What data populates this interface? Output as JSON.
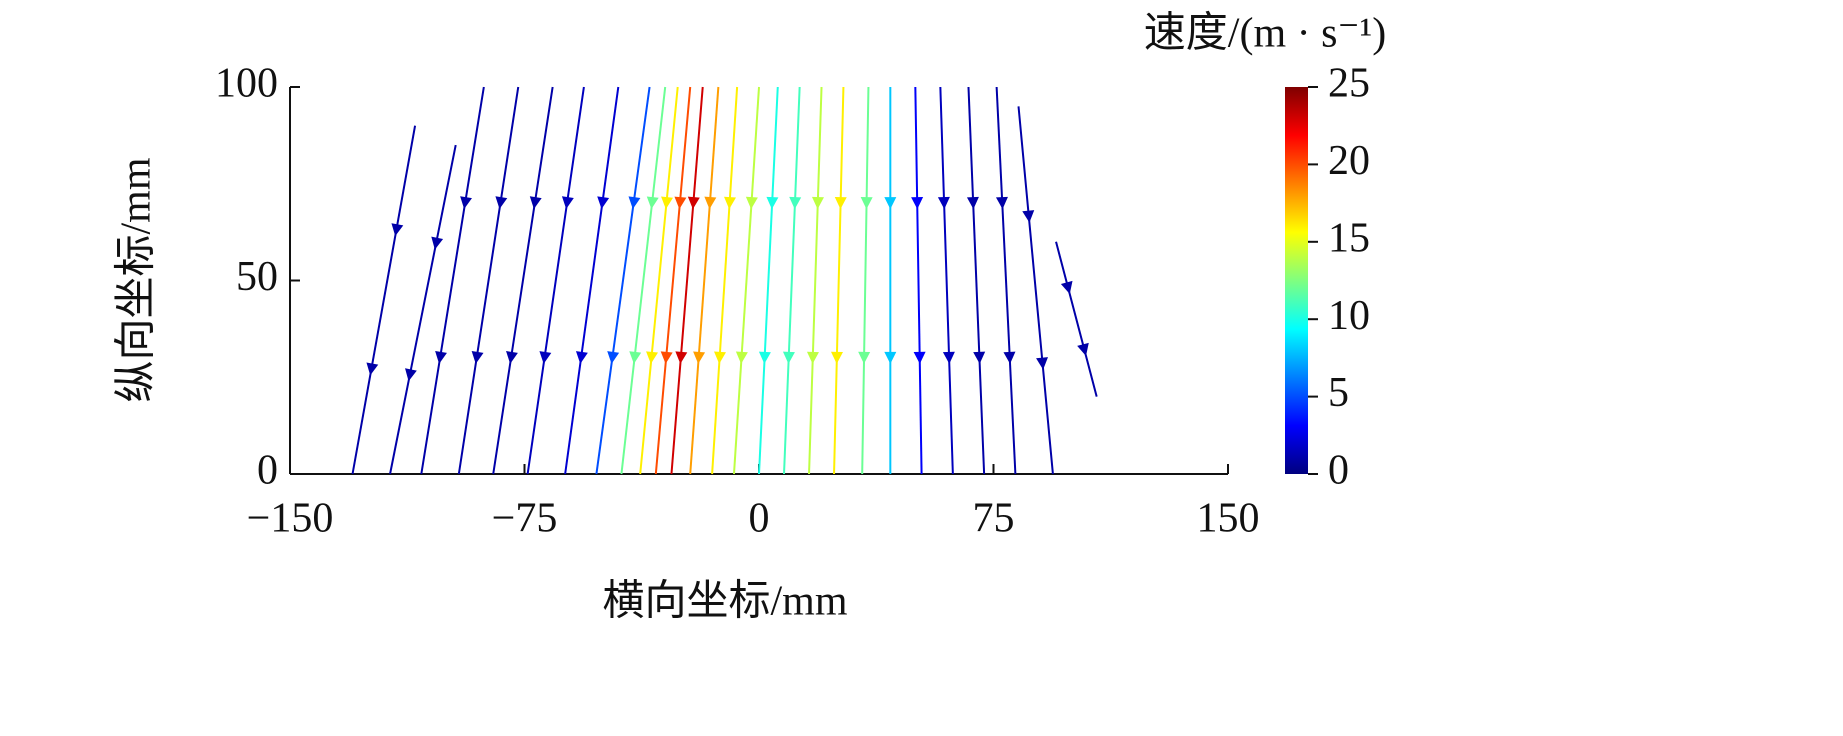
{
  "chart_data": {
    "type": "streamline",
    "xlabel": "横向坐标/mm",
    "ylabel": "纵向坐标/mm",
    "colorbar_label": "速度/(m · s⁻¹)",
    "xlim": [
      -150,
      150
    ],
    "xticks": [
      {
        "value": -150,
        "label": "−150"
      },
      {
        "value": -75,
        "label": "−75"
      },
      0,
      75,
      150
    ],
    "ylim": [
      0,
      100
    ],
    "yticks": [
      0,
      50,
      100
    ],
    "clim": [
      0,
      25
    ],
    "cticks": [
      0,
      5,
      10,
      15,
      20,
      25
    ],
    "colormap": "jet",
    "streamlines": [
      {
        "x": [
          -130,
          -110
        ],
        "y": [
          0,
          90
        ],
        "speed": 1
      },
      {
        "x": [
          -118,
          -97
        ],
        "y": [
          0,
          85
        ],
        "speed": 1
      },
      {
        "x": [
          -108,
          -88
        ],
        "y": [
          0,
          100
        ],
        "speed": 1
      },
      {
        "x": [
          -96,
          -77
        ],
        "y": [
          0,
          100
        ],
        "speed": 1
      },
      {
        "x": [
          -85,
          -66
        ],
        "y": [
          0,
          100
        ],
        "speed": 1
      },
      {
        "x": [
          -74,
          -56
        ],
        "y": [
          0,
          100
        ],
        "speed": 1.5
      },
      {
        "x": [
          -62,
          -45
        ],
        "y": [
          0,
          100
        ],
        "speed": 2
      },
      {
        "x": [
          -52,
          -35
        ],
        "y": [
          0,
          100
        ],
        "speed": 5
      },
      {
        "x": [
          -44,
          -30
        ],
        "y": [
          0,
          100
        ],
        "speed": 12
      },
      {
        "x": [
          -38,
          -26
        ],
        "y": [
          0,
          100
        ],
        "speed": 16
      },
      {
        "x": [
          -33,
          -22
        ],
        "y": [
          0,
          100
        ],
        "speed": 20
      },
      {
        "x": [
          -28,
          -18
        ],
        "y": [
          0,
          100
        ],
        "speed": 23
      },
      {
        "x": [
          -22,
          -13
        ],
        "y": [
          0,
          100
        ],
        "speed": 18
      },
      {
        "x": [
          -15,
          -7
        ],
        "y": [
          0,
          100
        ],
        "speed": 16
      },
      {
        "x": [
          -8,
          0
        ],
        "y": [
          0,
          100
        ],
        "speed": 14
      },
      {
        "x": [
          0,
          6
        ],
        "y": [
          0,
          100
        ],
        "speed": 10
      },
      {
        "x": [
          8,
          13
        ],
        "y": [
          0,
          100
        ],
        "speed": 11
      },
      {
        "x": [
          16,
          20
        ],
        "y": [
          0,
          100
        ],
        "speed": 14
      },
      {
        "x": [
          24,
          27
        ],
        "y": [
          0,
          100
        ],
        "speed": 16
      },
      {
        "x": [
          33,
          35
        ],
        "y": [
          0,
          100
        ],
        "speed": 12
      },
      {
        "x": [
          42,
          42
        ],
        "y": [
          0,
          100
        ],
        "speed": 8
      },
      {
        "x": [
          52,
          50
        ],
        "y": [
          0,
          100
        ],
        "speed": 3
      },
      {
        "x": [
          62,
          58
        ],
        "y": [
          0,
          100
        ],
        "speed": 1.5
      },
      {
        "x": [
          72,
          67
        ],
        "y": [
          0,
          100
        ],
        "speed": 1
      },
      {
        "x": [
          82,
          76
        ],
        "y": [
          0,
          100
        ],
        "speed": 1
      },
      {
        "x": [
          94,
          83
        ],
        "y": [
          0,
          95
        ],
        "speed": 1
      },
      {
        "x": [
          108,
          95
        ],
        "y": [
          20,
          60
        ],
        "speed": 1
      }
    ]
  }
}
